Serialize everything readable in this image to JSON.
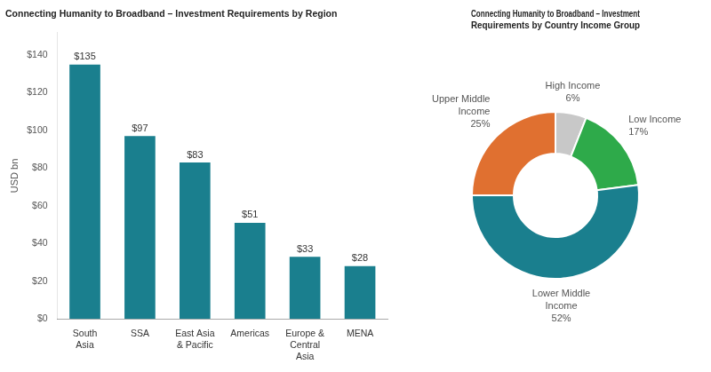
{
  "chart_data": [
    {
      "type": "bar",
      "title": "Connecting Humanity to Broadband – Investment Requirements by Region",
      "categories": [
        "South\nAsia",
        "SSA",
        "East Asia\n& Pacific",
        "Americas",
        "Europe &\nCentral\nAsia",
        "MENA"
      ],
      "values": [
        135,
        97,
        83,
        51,
        33,
        28
      ],
      "value_labels": [
        "$135",
        "$97",
        "$83",
        "$51",
        "$33",
        "$28"
      ],
      "data_labels": true,
      "color": "#1a7f8e",
      "y_label": "USD bn",
      "ylim": [
        0,
        152
      ],
      "yticks": [
        {
          "value": 0,
          "label": "$0"
        },
        {
          "value": 20,
          "label": "$20"
        },
        {
          "value": 40,
          "label": "$40"
        },
        {
          "value": 60,
          "label": "$60"
        },
        {
          "value": 80,
          "label": "$80"
        },
        {
          "value": 100,
          "label": "$100"
        },
        {
          "value": 120,
          "label": "$120"
        },
        {
          "value": 140,
          "label": "$140"
        }
      ],
      "grid": false
    },
    {
      "type": "doughnut",
      "title": "Connecting Humanity to Broadband – Investment\nRequirements by Country Income Group",
      "categories": [
        "High Income",
        "Low Income",
        "Lower Middle\nIncome",
        "Upper Middle\nIncome"
      ],
      "values": [
        6,
        17,
        52,
        25
      ],
      "value_labels": [
        "6%",
        "17%",
        "52%",
        "25%"
      ],
      "data_labels": true,
      "colors": [
        "#c8c8c8",
        "#2eaa4a",
        "#1a7f8e",
        "#e07030"
      ]
    }
  ]
}
